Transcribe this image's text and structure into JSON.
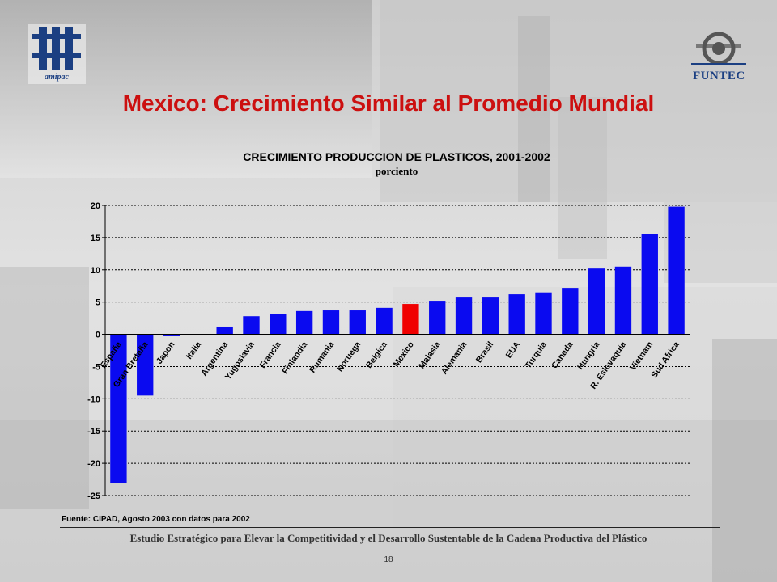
{
  "slide": {
    "title": "Mexico: Crecimiento Similar al Promedio Mundial",
    "logo_left_text": "amipac",
    "logo_right_text": "FUNTEC",
    "source_note": "Fuente: CIPAD, Agosto 2003 con datos para 2002",
    "footer": "Estudio Estratégico para Elevar la Competitividad y el Desarrollo Sustentable de la Cadena Productiva del Plástico",
    "page_number": "18"
  },
  "colors": {
    "title": "#cc1010",
    "bar": "#0a0af0",
    "highlight_bar": "#f00000"
  },
  "chart_data": {
    "type": "bar",
    "title": "CRECIMIENTO PRODUCCION DE PLASTICOS, 2001-2002",
    "subtitle": "porciento",
    "xlabel": "",
    "ylabel": "",
    "ylim": [
      -25,
      20
    ],
    "yticks": [
      20,
      15,
      10,
      5,
      0,
      -5,
      -10,
      -15,
      -20,
      -25
    ],
    "grid": "horizontal dotted",
    "highlight": "Mexico",
    "categories": [
      "España",
      "Gran Bretaña",
      "Japon",
      "Italia",
      "Argentina",
      "Yugoslavia",
      "Francia",
      "Finlandia",
      "Rumania",
      "Noruega",
      "Belgica",
      "Mexico",
      "Malasia",
      "Alemania",
      "Brasil",
      "EUA",
      "Turquia",
      "Canada",
      "Hungria",
      "R. Eslovaquia",
      "Vietnam",
      "Sud Africa"
    ],
    "values": [
      -23,
      -9.5,
      -0.3,
      0,
      1.2,
      2.8,
      3.1,
      3.6,
      3.7,
      3.7,
      4.1,
      4.7,
      5.2,
      5.7,
      5.7,
      6.2,
      6.5,
      7.2,
      10.2,
      10.5,
      15.6,
      19.8
    ]
  }
}
